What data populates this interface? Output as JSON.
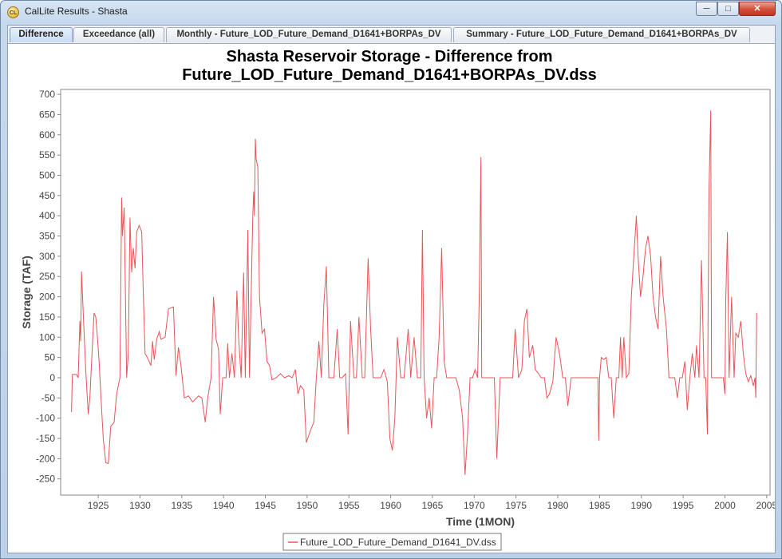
{
  "window": {
    "title": "CalLite Results - Shasta",
    "icon_text": "CL",
    "controls": {
      "minimize": "─",
      "maximize": "□",
      "close": "✕"
    }
  },
  "tabs": [
    {
      "label": "Difference",
      "active": true
    },
    {
      "label": "Exceedance (all)",
      "active": false
    },
    {
      "label": "Monthly - Future_LOD_Future_Demand_D1641+BORPAs_DV",
      "active": false
    },
    {
      "label": "Summary - Future_LOD_Future_Demand_D1641+BORPAs_DV",
      "active": false
    }
  ],
  "colors": {
    "series": "#e8545a",
    "accent": "#c9dcf2"
  },
  "chart_data": {
    "type": "line",
    "title": [
      "Shasta Reservoir Storage - Difference from",
      "Future_LOD_Future_Demand_D1641+BORPAs_DV.dss"
    ],
    "xlabel": "Time (1MON)",
    "ylabel": "Storage (TAF)",
    "xlim": [
      1920.5,
      2005.4
    ],
    "ylim": [
      -290,
      712
    ],
    "x_ticks": [
      1925,
      1930,
      1935,
      1940,
      1945,
      1950,
      1955,
      1960,
      1965,
      1970,
      1975,
      1980,
      1985,
      1990,
      1995,
      2000,
      2005
    ],
    "y_ticks": [
      -250,
      -200,
      -150,
      -100,
      -50,
      0,
      50,
      100,
      150,
      200,
      250,
      300,
      350,
      400,
      450,
      500,
      550,
      600,
      650,
      700
    ],
    "grid": false,
    "legend_position": "bottom-center",
    "series": [
      {
        "name": "Future_LOD_Future_Demand_D1641_DV.dss",
        "color": "#e8545a",
        "points": [
          [
            1921.8,
            -85
          ],
          [
            1921.9,
            8
          ],
          [
            1922.4,
            8
          ],
          [
            1922.6,
            0
          ],
          [
            1922.8,
            140
          ],
          [
            1922.9,
            90
          ],
          [
            1923.0,
            262
          ],
          [
            1923.2,
            160
          ],
          [
            1923.5,
            20
          ],
          [
            1923.8,
            -90
          ],
          [
            1924.0,
            -50
          ],
          [
            1924.3,
            80
          ],
          [
            1924.5,
            160
          ],
          [
            1924.7,
            150
          ],
          [
            1924.9,
            100
          ],
          [
            1925.1,
            40
          ],
          [
            1925.3,
            -40
          ],
          [
            1925.6,
            -150
          ],
          [
            1925.9,
            -210
          ],
          [
            1926.2,
            -212
          ],
          [
            1926.5,
            -120
          ],
          [
            1926.9,
            -110
          ],
          [
            1927.2,
            -40
          ],
          [
            1927.6,
            0
          ],
          [
            1927.8,
            445
          ],
          [
            1927.9,
            350
          ],
          [
            1928.1,
            420
          ],
          [
            1928.4,
            0
          ],
          [
            1928.6,
            60
          ],
          [
            1928.8,
            395
          ],
          [
            1929.0,
            260
          ],
          [
            1929.2,
            320
          ],
          [
            1929.4,
            270
          ],
          [
            1929.6,
            360
          ],
          [
            1929.9,
            376
          ],
          [
            1930.2,
            360
          ],
          [
            1930.4,
            200
          ],
          [
            1930.6,
            60
          ],
          [
            1931.0,
            45
          ],
          [
            1931.3,
            30
          ],
          [
            1931.5,
            90
          ],
          [
            1931.7,
            45
          ],
          [
            1932.0,
            95
          ],
          [
            1932.3,
            114
          ],
          [
            1932.5,
            95
          ],
          [
            1933.0,
            100
          ],
          [
            1933.4,
            170
          ],
          [
            1934.0,
            175
          ],
          [
            1934.3,
            5
          ],
          [
            1934.6,
            75
          ],
          [
            1934.9,
            30
          ],
          [
            1935.3,
            -50
          ],
          [
            1935.8,
            -45
          ],
          [
            1936.3,
            -60
          ],
          [
            1937.0,
            -45
          ],
          [
            1937.4,
            -50
          ],
          [
            1937.8,
            -110
          ],
          [
            1938.1,
            -50
          ],
          [
            1938.5,
            0
          ],
          [
            1938.8,
            200
          ],
          [
            1939.1,
            95
          ],
          [
            1939.4,
            70
          ],
          [
            1939.6,
            -90
          ],
          [
            1939.9,
            0
          ],
          [
            1940.3,
            0
          ],
          [
            1940.5,
            85
          ],
          [
            1940.7,
            0
          ],
          [
            1941.0,
            60
          ],
          [
            1941.3,
            0
          ],
          [
            1941.6,
            215
          ],
          [
            1941.8,
            100
          ],
          [
            1942.1,
            0
          ],
          [
            1942.4,
            260
          ],
          [
            1942.6,
            0
          ],
          [
            1942.9,
            365
          ],
          [
            1943.1,
            0
          ],
          [
            1943.5,
            400
          ],
          [
            1943.6,
            460
          ],
          [
            1943.7,
            400
          ],
          [
            1943.8,
            590
          ],
          [
            1943.9,
            540
          ],
          [
            1944.1,
            520
          ],
          [
            1944.3,
            200
          ],
          [
            1944.6,
            110
          ],
          [
            1944.9,
            120
          ],
          [
            1945.2,
            40
          ],
          [
            1945.5,
            30
          ],
          [
            1945.8,
            -5
          ],
          [
            1946.3,
            0
          ],
          [
            1946.8,
            10
          ],
          [
            1947.3,
            0
          ],
          [
            1947.8,
            5
          ],
          [
            1948.2,
            0
          ],
          [
            1948.6,
            20
          ],
          [
            1948.9,
            -40
          ],
          [
            1949.2,
            -20
          ],
          [
            1949.6,
            -30
          ],
          [
            1949.9,
            -160
          ],
          [
            1950.4,
            -130
          ],
          [
            1950.8,
            -110
          ],
          [
            1951.1,
            0
          ],
          [
            1951.4,
            90
          ],
          [
            1951.7,
            0
          ],
          [
            1952.0,
            180
          ],
          [
            1952.3,
            275
          ],
          [
            1952.6,
            0
          ],
          [
            1953.2,
            0
          ],
          [
            1953.6,
            120
          ],
          [
            1953.9,
            0
          ],
          [
            1954.2,
            0
          ],
          [
            1954.6,
            10
          ],
          [
            1954.9,
            -140
          ],
          [
            1955.2,
            140
          ],
          [
            1955.6,
            0
          ],
          [
            1955.9,
            0
          ],
          [
            1956.2,
            150
          ],
          [
            1956.6,
            0
          ],
          [
            1956.9,
            0
          ],
          [
            1957.3,
            295
          ],
          [
            1957.6,
            120
          ],
          [
            1957.9,
            0
          ],
          [
            1958.3,
            0
          ],
          [
            1958.8,
            0
          ],
          [
            1959.2,
            20
          ],
          [
            1959.6,
            -10
          ],
          [
            1959.9,
            -150
          ],
          [
            1960.2,
            -180
          ],
          [
            1960.5,
            -100
          ],
          [
            1960.8,
            100
          ],
          [
            1961.2,
            0
          ],
          [
            1961.6,
            0
          ],
          [
            1962.1,
            120
          ],
          [
            1962.4,
            0
          ],
          [
            1962.8,
            100
          ],
          [
            1963.2,
            0
          ],
          [
            1963.6,
            0
          ],
          [
            1963.8,
            365
          ],
          [
            1964.0,
            0
          ],
          [
            1964.3,
            -100
          ],
          [
            1964.6,
            -50
          ],
          [
            1964.9,
            -125
          ],
          [
            1965.2,
            0
          ],
          [
            1965.5,
            0
          ],
          [
            1965.8,
            100
          ],
          [
            1966.1,
            320
          ],
          [
            1966.4,
            40
          ],
          [
            1966.7,
            0
          ],
          [
            1967.0,
            0
          ],
          [
            1967.4,
            0
          ],
          [
            1967.8,
            0
          ],
          [
            1968.2,
            -30
          ],
          [
            1968.6,
            -100
          ],
          [
            1968.9,
            -240
          ],
          [
            1969.2,
            -140
          ],
          [
            1969.5,
            0
          ],
          [
            1969.8,
            0
          ],
          [
            1970.1,
            20
          ],
          [
            1970.4,
            0
          ],
          [
            1970.6,
            200
          ],
          [
            1970.8,
            545
          ],
          [
            1970.9,
            0
          ],
          [
            1971.1,
            0
          ],
          [
            1971.4,
            0
          ],
          [
            1971.7,
            0
          ],
          [
            1972.0,
            0
          ],
          [
            1972.4,
            0
          ],
          [
            1972.7,
            -200
          ],
          [
            1973.1,
            0
          ],
          [
            1973.5,
            0
          ],
          [
            1973.8,
            0
          ],
          [
            1974.2,
            0
          ],
          [
            1974.6,
            0
          ],
          [
            1974.9,
            120
          ],
          [
            1975.3,
            0
          ],
          [
            1975.7,
            20
          ],
          [
            1976.0,
            140
          ],
          [
            1976.3,
            170
          ],
          [
            1976.6,
            50
          ],
          [
            1977.0,
            80
          ],
          [
            1977.3,
            20
          ],
          [
            1977.7,
            10
          ],
          [
            1978.0,
            0
          ],
          [
            1978.4,
            0
          ],
          [
            1978.7,
            -50
          ],
          [
            1979.0,
            -40
          ],
          [
            1979.4,
            -10
          ],
          [
            1979.8,
            100
          ],
          [
            1980.2,
            60
          ],
          [
            1980.6,
            0
          ],
          [
            1980.9,
            0
          ],
          [
            1981.2,
            -70
          ],
          [
            1981.6,
            0
          ],
          [
            1982.0,
            0
          ],
          [
            1982.4,
            0
          ],
          [
            1982.8,
            0
          ],
          [
            1983.2,
            0
          ],
          [
            1983.6,
            0
          ],
          [
            1984.0,
            0
          ],
          [
            1984.4,
            0
          ],
          [
            1984.8,
            0
          ],
          [
            1984.9,
            -155
          ],
          [
            1985.0,
            0
          ],
          [
            1985.2,
            50
          ],
          [
            1985.5,
            45
          ],
          [
            1985.8,
            50
          ],
          [
            1986.1,
            0
          ],
          [
            1986.4,
            0
          ],
          [
            1986.7,
            -100
          ],
          [
            1987.0,
            0
          ],
          [
            1987.3,
            0
          ],
          [
            1987.5,
            100
          ],
          [
            1987.7,
            0
          ],
          [
            1987.9,
            100
          ],
          [
            1988.2,
            0
          ],
          [
            1988.5,
            10
          ],
          [
            1988.8,
            200
          ],
          [
            1989.1,
            300
          ],
          [
            1989.4,
            400
          ],
          [
            1989.6,
            300
          ],
          [
            1989.9,
            200
          ],
          [
            1990.2,
            250
          ],
          [
            1990.5,
            320
          ],
          [
            1990.8,
            350
          ],
          [
            1991.1,
            300
          ],
          [
            1991.4,
            200
          ],
          [
            1991.7,
            150
          ],
          [
            1992.0,
            120
          ],
          [
            1992.3,
            300
          ],
          [
            1992.6,
            200
          ],
          [
            1993.0,
            120
          ],
          [
            1993.3,
            0
          ],
          [
            1993.6,
            0
          ],
          [
            1994.0,
            0
          ],
          [
            1994.3,
            -50
          ],
          [
            1994.6,
            0
          ],
          [
            1994.9,
            0
          ],
          [
            1995.2,
            40
          ],
          [
            1995.5,
            -80
          ],
          [
            1995.8,
            0
          ],
          [
            1996.1,
            60
          ],
          [
            1996.4,
            0
          ],
          [
            1996.6,
            80
          ],
          [
            1996.9,
            0
          ],
          [
            1997.2,
            290
          ],
          [
            1997.5,
            0
          ],
          [
            1997.7,
            0
          ],
          [
            1997.9,
            -140
          ],
          [
            1998.0,
            200
          ],
          [
            1998.1,
            470
          ],
          [
            1998.3,
            660
          ],
          [
            1998.4,
            0
          ],
          [
            1998.8,
            0
          ],
          [
            1999.3,
            0
          ],
          [
            1999.8,
            0
          ],
          [
            2000.0,
            -40
          ],
          [
            2000.1,
            190
          ],
          [
            2000.3,
            360
          ],
          [
            2000.5,
            0
          ],
          [
            2000.8,
            200
          ],
          [
            2001.1,
            0
          ],
          [
            2001.3,
            110
          ],
          [
            2001.6,
            100
          ],
          [
            2001.9,
            140
          ],
          [
            2002.2,
            60
          ],
          [
            2002.5,
            10
          ],
          [
            2002.8,
            -10
          ],
          [
            2003.1,
            5
          ],
          [
            2003.4,
            -20
          ],
          [
            2003.6,
            0
          ],
          [
            2003.7,
            -50
          ],
          [
            2003.8,
            160
          ]
        ]
      }
    ]
  }
}
